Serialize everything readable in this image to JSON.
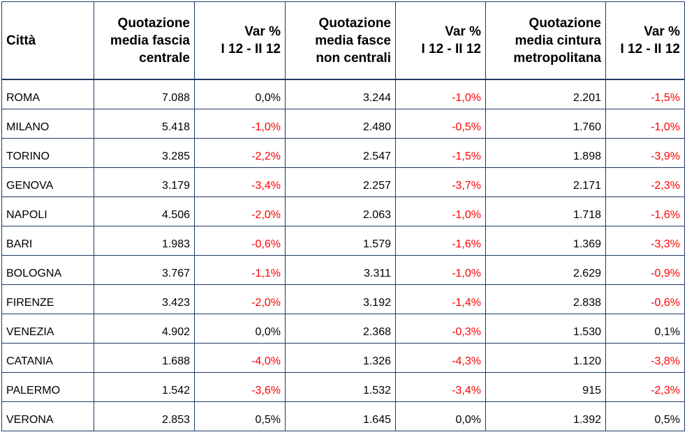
{
  "table": {
    "headers": [
      "Città",
      "Quotazione\nmedia fascia\ncentrale",
      "Var %\nI 12 - II 12",
      "Quotazione\nmedia fasce\nnon centrali",
      "Var %\nI 12 - II 12",
      "Quotazione\nmedia cintura\nmetropolitana",
      "Var %\nI 12 - II 12"
    ],
    "negative_color": "#ff0000",
    "rows": [
      [
        "ROMA",
        "7.088",
        "0,0%",
        "3.244",
        "-1,0%",
        "2.201",
        "-1,5%"
      ],
      [
        "MILANO",
        "5.418",
        "-1,0%",
        "2.480",
        "-0,5%",
        "1.760",
        "-1,0%"
      ],
      [
        "TORINO",
        "3.285",
        "-2,2%",
        "2.547",
        "-1,5%",
        "1.898",
        "-3,9%"
      ],
      [
        "GENOVA",
        "3.179",
        "-3,4%",
        "2.257",
        "-3,7%",
        "2.171",
        "-2,3%"
      ],
      [
        "NAPOLI",
        "4.506",
        "-2,0%",
        "2.063",
        "-1,0%",
        "1.718",
        "-1,6%"
      ],
      [
        "BARI",
        "1.983",
        "-0,6%",
        "1.579",
        "-1,6%",
        "1.369",
        "-3,3%"
      ],
      [
        "BOLOGNA",
        "3.767",
        "-1,1%",
        "3.311",
        "-1,0%",
        "2.629",
        "-0,9%"
      ],
      [
        "FIRENZE",
        "3.423",
        "-2,0%",
        "3.192",
        "-1,4%",
        "2.838",
        "-0,6%"
      ],
      [
        "VENEZIA",
        "4.902",
        "0,0%",
        "2.368",
        "-0,3%",
        "1.530",
        "0,1%"
      ],
      [
        "CATANIA",
        "1.688",
        "-4,0%",
        "1.326",
        "-4,3%",
        "1.120",
        "-3,8%"
      ],
      [
        "PALERMO",
        "1.542",
        "-3,6%",
        "1.532",
        "-3,4%",
        "915",
        "-2,3%"
      ],
      [
        "VERONA",
        "2.853",
        "0,5%",
        "1.645",
        "0,0%",
        "1.392",
        "0,5%"
      ]
    ]
  }
}
